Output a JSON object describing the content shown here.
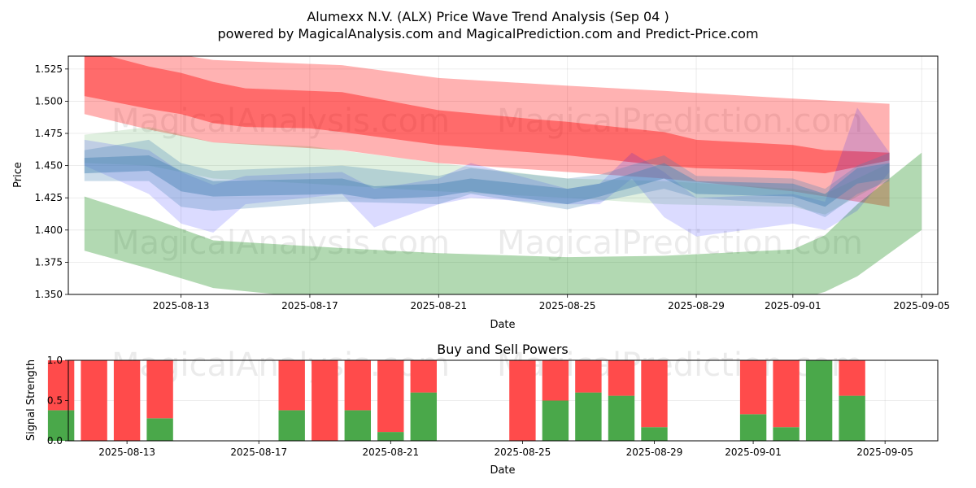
{
  "chart_data": [
    {
      "type": "area",
      "title": "Alumexx N.V. (ALX) Price Wave Trend Analysis (Sep 04 )",
      "subtitle": "powered by MagicalAnalysis.com and MagicalPrediction.com and Predict-Price.com",
      "xlabel": "Date",
      "ylabel": "Price",
      "x_start": "2025-08-10",
      "xlim": [
        "2025-08-09T12:00",
        "2025-09-05T12:00"
      ],
      "ylim": [
        1.35,
        1.535
      ],
      "x_ticks": [
        "2025-08-13",
        "2025-08-17",
        "2025-08-21",
        "2025-08-25",
        "2025-08-29",
        "2025-09-01",
        "2025-09-05"
      ],
      "y_ticks": [
        "1.350",
        "1.375",
        "1.400",
        "1.425",
        "1.450",
        "1.475",
        "1.500",
        "1.525"
      ],
      "grid": true,
      "colors": {
        "red": "#ff0000",
        "green": "#008000",
        "blue": "#0000ff",
        "teal": "#4682b4"
      },
      "bands": [
        {
          "color": "#ff0000",
          "opacity": 0.3,
          "x": [
            "2025-08-10",
            "2025-08-12",
            "2025-08-14",
            "2025-08-18",
            "2025-08-21",
            "2025-08-25",
            "2025-08-28",
            "2025-09-01",
            "2025-09-04"
          ],
          "upper": [
            1.545,
            1.54,
            1.532,
            1.528,
            1.518,
            1.512,
            1.508,
            1.502,
            1.498
          ],
          "lower": [
            1.49,
            1.478,
            1.468,
            1.462,
            1.452,
            1.445,
            1.44,
            1.43,
            1.418
          ]
        },
        {
          "color": "#ff0000",
          "opacity": 0.4,
          "x": [
            "2025-08-10",
            "2025-08-12",
            "2025-08-13",
            "2025-08-14",
            "2025-08-15",
            "2025-08-17",
            "2025-08-18",
            "2025-08-21",
            "2025-08-24",
            "2025-08-25",
            "2025-08-28",
            "2025-08-29",
            "2025-09-01",
            "2025-09-02",
            "2025-09-04"
          ],
          "upper": [
            1.54,
            1.527,
            1.522,
            1.515,
            1.51,
            1.508,
            1.507,
            1.493,
            1.486,
            1.484,
            1.476,
            1.47,
            1.466,
            1.462,
            1.46
          ],
          "lower": [
            1.504,
            1.494,
            1.49,
            1.483,
            1.48,
            1.479,
            1.476,
            1.466,
            1.46,
            1.458,
            1.45,
            1.448,
            1.446,
            1.444,
            1.454
          ]
        },
        {
          "color": "#008000",
          "opacity": 0.3,
          "x": [
            "2025-08-10",
            "2025-08-12",
            "2025-08-14",
            "2025-08-18",
            "2025-08-21",
            "2025-08-25",
            "2025-08-28",
            "2025-09-01",
            "2025-09-02",
            "2025-09-03",
            "2025-09-05"
          ],
          "upper": [
            1.426,
            1.41,
            1.392,
            1.386,
            1.382,
            1.379,
            1.38,
            1.385,
            1.396,
            1.42,
            1.46
          ],
          "lower": [
            1.384,
            1.37,
            1.355,
            1.345,
            1.34,
            1.338,
            1.339,
            1.345,
            1.352,
            1.364,
            1.4
          ]
        },
        {
          "color": "#008000",
          "opacity": 0.12,
          "x": [
            "2025-08-10",
            "2025-08-12",
            "2025-08-14",
            "2025-08-17",
            "2025-08-21",
            "2025-08-25",
            "2025-08-28",
            "2025-09-01",
            "2025-09-02",
            "2025-09-04"
          ],
          "upper": [
            1.474,
            1.48,
            1.468,
            1.465,
            1.452,
            1.44,
            1.438,
            1.432,
            1.428,
            1.452
          ],
          "lower": [
            1.452,
            1.45,
            1.44,
            1.436,
            1.43,
            1.425,
            1.42,
            1.418,
            1.412,
            1.44
          ]
        },
        {
          "color": "#0000ff",
          "opacity": 0.14,
          "x": [
            "2025-08-10",
            "2025-08-12",
            "2025-08-13",
            "2025-08-14",
            "2025-08-15",
            "2025-08-18",
            "2025-08-19",
            "2025-08-21",
            "2025-08-22",
            "2025-08-25",
            "2025-08-26",
            "2025-08-27",
            "2025-08-28",
            "2025-08-29",
            "2025-09-01",
            "2025-09-02",
            "2025-09-03",
            "2025-09-04"
          ],
          "upper": [
            1.47,
            1.462,
            1.445,
            1.435,
            1.442,
            1.445,
            1.432,
            1.44,
            1.452,
            1.432,
            1.436,
            1.46,
            1.445,
            1.425,
            1.428,
            1.422,
            1.495,
            1.46
          ],
          "lower": [
            1.45,
            1.428,
            1.405,
            1.398,
            1.42,
            1.428,
            1.402,
            1.42,
            1.425,
            1.42,
            1.42,
            1.44,
            1.41,
            1.395,
            1.405,
            1.4,
            1.415,
            1.445
          ]
        },
        {
          "color": "#4682b4",
          "opacity": 0.28,
          "x": [
            "2025-08-10",
            "2025-08-12",
            "2025-08-13",
            "2025-08-14",
            "2025-08-18",
            "2025-08-21",
            "2025-08-22",
            "2025-08-25",
            "2025-08-26",
            "2025-08-28",
            "2025-08-29",
            "2025-09-01",
            "2025-09-02",
            "2025-09-03",
            "2025-09-04"
          ],
          "upper": [
            1.462,
            1.47,
            1.452,
            1.446,
            1.45,
            1.442,
            1.448,
            1.44,
            1.443,
            1.458,
            1.442,
            1.44,
            1.432,
            1.45,
            1.46
          ],
          "lower": [
            1.438,
            1.438,
            1.418,
            1.415,
            1.422,
            1.42,
            1.428,
            1.416,
            1.422,
            1.432,
            1.425,
            1.42,
            1.41,
            1.428,
            1.438
          ]
        },
        {
          "color": "#4682b4",
          "opacity": 0.45,
          "x": [
            "2025-08-10",
            "2025-08-12",
            "2025-08-13",
            "2025-08-14",
            "2025-08-18",
            "2025-08-19",
            "2025-08-21",
            "2025-08-22",
            "2025-08-25",
            "2025-08-26",
            "2025-08-28",
            "2025-08-29",
            "2025-09-01",
            "2025-09-02",
            "2025-09-03",
            "2025-09-04"
          ],
          "upper": [
            1.456,
            1.458,
            1.446,
            1.438,
            1.44,
            1.434,
            1.436,
            1.44,
            1.432,
            1.436,
            1.452,
            1.438,
            1.436,
            1.428,
            1.448,
            1.452
          ],
          "lower": [
            1.444,
            1.446,
            1.43,
            1.426,
            1.428,
            1.424,
            1.426,
            1.43,
            1.42,
            1.426,
            1.44,
            1.428,
            1.426,
            1.418,
            1.436,
            1.44
          ]
        }
      ]
    },
    {
      "type": "bar",
      "title": "Buy and Sell Powers",
      "xlabel": "Date",
      "ylabel": "Signal Strength",
      "ylim": [
        0,
        1.0
      ],
      "y_ticks": [
        "0.0",
        "0.5",
        "1.0"
      ],
      "x_ticks": [
        "2025-08-13",
        "2025-08-17",
        "2025-08-21",
        "2025-08-25",
        "2025-08-29",
        "2025-09-01",
        "2025-09-05"
      ],
      "colors": {
        "buy": "#4aa84a",
        "sell": "#ff4b4b"
      },
      "dates": [
        "2025-08-11",
        "2025-08-12",
        "2025-08-13",
        "2025-08-14",
        "2025-08-18",
        "2025-08-19",
        "2025-08-20",
        "2025-08-21",
        "2025-08-22",
        "2025-08-25",
        "2025-08-26",
        "2025-08-27",
        "2025-08-28",
        "2025-08-29",
        "2025-09-01",
        "2025-09-02",
        "2025-09-03",
        "2025-09-04"
      ],
      "buy": [
        0.38,
        0.0,
        0.0,
        0.28,
        0.38,
        0.0,
        0.38,
        0.11,
        0.6,
        0.0,
        0.5,
        0.6,
        0.56,
        0.17,
        0.33,
        0.17,
        1.0,
        0.56
      ],
      "sell": [
        0.62,
        1.0,
        1.0,
        0.72,
        0.62,
        1.0,
        0.62,
        0.89,
        0.4,
        1.0,
        0.5,
        0.4,
        0.44,
        0.83,
        0.67,
        0.83,
        0.0,
        0.44
      ]
    }
  ],
  "watermarks": [
    "MagicalAnalysis.com",
    "MagicalPrediction.com"
  ]
}
